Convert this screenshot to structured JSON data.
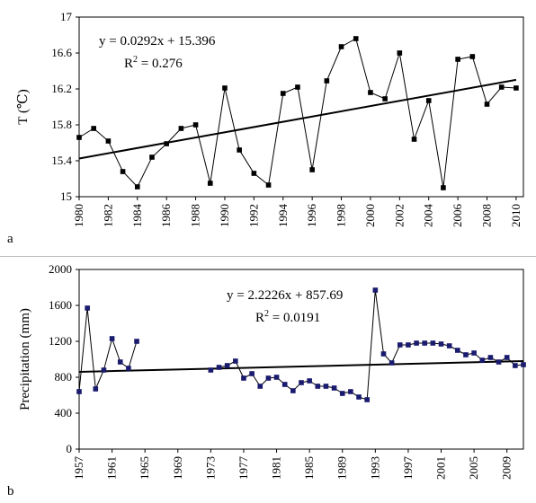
{
  "chart_data": [
    {
      "type": "line",
      "panel_label": "a",
      "ylabel": "T (℃)",
      "equation": "y = 0.0292x + 15.396",
      "r2_label": "R",
      "r2_sup": "2",
      "r2_value": " = 0.276",
      "ylim": [
        15,
        17
      ],
      "yticks": [
        "15",
        "15.4",
        "15.8",
        "16.2",
        "16.6",
        "17"
      ],
      "xlim": [
        1980,
        2010.5
      ],
      "xticks": [
        "1980",
        "1982",
        "1984",
        "1986",
        "1988",
        "1990",
        "1992",
        "1994",
        "1996",
        "1998",
        "2000",
        "2002",
        "2004",
        "2006",
        "2008",
        "2010"
      ],
      "series": [
        {
          "x": [
            1980,
            1981,
            1982,
            1983,
            1984,
            1985,
            1986,
            1987,
            1988,
            1989,
            1990,
            1991,
            1992,
            1993,
            1994,
            1995,
            1996,
            1997,
            1998,
            1999,
            2000,
            2001,
            2002,
            2003,
            2004,
            2005,
            2006,
            2007,
            2008,
            2009,
            2010
          ],
          "values": [
            15.66,
            15.76,
            15.62,
            15.28,
            15.11,
            15.44,
            15.59,
            15.76,
            15.8,
            15.15,
            16.21,
            15.52,
            15.26,
            15.13,
            16.15,
            16.22,
            15.3,
            16.29,
            16.67,
            16.76,
            16.16,
            16.09,
            16.6,
            15.64,
            16.07,
            15.1,
            16.53,
            16.56,
            16.03,
            16.22,
            16.21
          ]
        }
      ],
      "trendline": {
        "slope": 0.0292,
        "intercept": 15.396
      },
      "marker_color": "#000000"
    },
    {
      "type": "line",
      "panel_label": "b",
      "ylabel": "Precipitation (mm)",
      "equation": "y = 2.2226x + 857.69",
      "r2_label": "R",
      "r2_sup": "2",
      "r2_value": " = 0.0191",
      "ylim": [
        0,
        2000
      ],
      "yticks": [
        "0",
        "400",
        "800",
        "1200",
        "1600",
        "2000"
      ],
      "xlim": [
        1957,
        2011
      ],
      "xticks": [
        "1957",
        "1961",
        "1965",
        "1969",
        "1973",
        "1977",
        "1981",
        "1985",
        "1989",
        "1993",
        "1997",
        "2001",
        "2005",
        "2009"
      ],
      "series": [
        {
          "x": [
            1957,
            1958,
            1959,
            1960,
            1961,
            1962,
            1963,
            1964
          ],
          "values": [
            640,
            1570,
            670,
            880,
            1230,
            970,
            900,
            1200
          ]
        },
        {
          "x": [
            1973,
            1974,
            1975,
            1976,
            1977,
            1978,
            1979,
            1980,
            1981,
            1982,
            1983,
            1984,
            1985,
            1986,
            1987,
            1988,
            1989,
            1990,
            1991,
            1992,
            1993,
            1994,
            1995,
            1996,
            1997,
            1998,
            1999,
            2000,
            2001,
            2002,
            2003,
            2004,
            2005,
            2006,
            2007,
            2008,
            2009,
            2010,
            2011
          ],
          "values": [
            880,
            910,
            930,
            980,
            790,
            840,
            700,
            790,
            800,
            720,
            650,
            740,
            760,
            700,
            700,
            680,
            620,
            640,
            580,
            550,
            1770,
            1060,
            960,
            1160,
            1160,
            1180,
            1180,
            1180,
            1170,
            1150,
            1100,
            1050,
            1070,
            990,
            1020,
            970,
            1020,
            930,
            940
          ]
        }
      ],
      "trendline": {
        "slope": 2.2226,
        "intercept": 857.69
      },
      "marker_color": "#1a1a6e"
    }
  ]
}
